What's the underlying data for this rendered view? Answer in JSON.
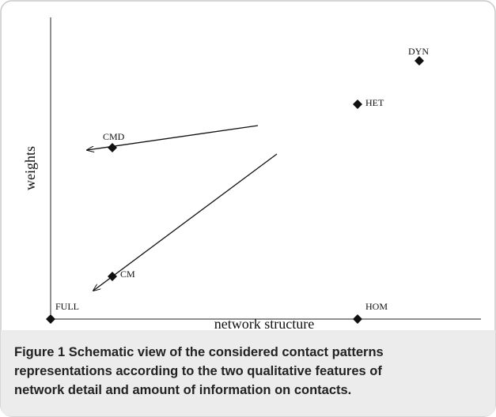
{
  "diagram": {
    "x_axis_label": "network structure",
    "y_axis_label": "weights",
    "nodes": [
      {
        "label": "FULL"
      },
      {
        "label": "HOM"
      },
      {
        "label": "CM"
      },
      {
        "label": "CMD"
      },
      {
        "label": "HET"
      },
      {
        "label": "DYN"
      }
    ]
  },
  "caption": {
    "label": "Figure 1",
    "lines": [
      "Schematic view of the considered contact patterns",
      "representations according to the two qualitative features of",
      "network detail and amount of information on contacts."
    ]
  }
}
